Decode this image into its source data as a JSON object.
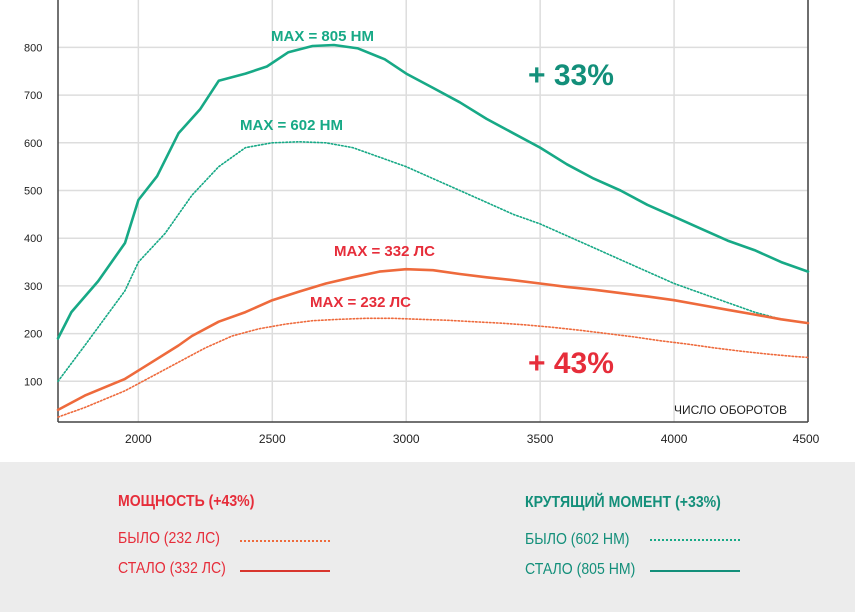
{
  "chart_data": {
    "type": "line",
    "xlabel": "ЧИСЛО ОБОРОТОВ",
    "xlim": [
      1700,
      4500
    ],
    "ylim": [
      0,
      870
    ],
    "x_ticks": [
      "2000",
      "2500",
      "3000",
      "3500",
      "4000",
      "4500"
    ],
    "y_ticks": [
      "100",
      "200",
      "300",
      "400",
      "500",
      "600",
      "700",
      "800"
    ],
    "grid": true,
    "colors": {
      "torque": "#17a986",
      "power": "#ee6a3c",
      "red_text": "#e62d3a"
    },
    "series": [
      {
        "name": "КРУТЯЩИЙ МОМЕНТ — СТАЛО (805 НМ)",
        "style": "solid",
        "color": "#17a986",
        "points": [
          [
            1700,
            190
          ],
          [
            1750,
            245
          ],
          [
            1850,
            310
          ],
          [
            1950,
            390
          ],
          [
            2000,
            480
          ],
          [
            2070,
            530
          ],
          [
            2150,
            620
          ],
          [
            2230,
            670
          ],
          [
            2300,
            730
          ],
          [
            2400,
            745
          ],
          [
            2480,
            760
          ],
          [
            2560,
            790
          ],
          [
            2650,
            803
          ],
          [
            2730,
            805
          ],
          [
            2820,
            798
          ],
          [
            2920,
            775
          ],
          [
            3000,
            745
          ],
          [
            3100,
            715
          ],
          [
            3200,
            685
          ],
          [
            3300,
            650
          ],
          [
            3400,
            620
          ],
          [
            3500,
            590
          ],
          [
            3600,
            555
          ],
          [
            3700,
            525
          ],
          [
            3800,
            500
          ],
          [
            3900,
            470
          ],
          [
            4000,
            445
          ],
          [
            4100,
            420
          ],
          [
            4200,
            395
          ],
          [
            4300,
            375
          ],
          [
            4400,
            350
          ],
          [
            4500,
            330
          ]
        ]
      },
      {
        "name": "КРУТЯЩИЙ МОМЕНТ — БЫЛО (602 НМ)",
        "style": "dotted",
        "color": "#17a986",
        "points": [
          [
            1700,
            100
          ],
          [
            1800,
            175
          ],
          [
            1950,
            290
          ],
          [
            2000,
            350
          ],
          [
            2100,
            410
          ],
          [
            2200,
            490
          ],
          [
            2300,
            550
          ],
          [
            2400,
            590
          ],
          [
            2500,
            600
          ],
          [
            2600,
            602
          ],
          [
            2700,
            600
          ],
          [
            2800,
            590
          ],
          [
            2900,
            570
          ],
          [
            3000,
            550
          ],
          [
            3100,
            525
          ],
          [
            3200,
            500
          ],
          [
            3300,
            475
          ],
          [
            3400,
            450
          ],
          [
            3500,
            430
          ],
          [
            3600,
            405
          ],
          [
            3700,
            380
          ],
          [
            3800,
            355
          ],
          [
            3900,
            330
          ],
          [
            4000,
            305
          ],
          [
            4100,
            285
          ],
          [
            4200,
            265
          ],
          [
            4300,
            245
          ],
          [
            4400,
            230
          ],
          [
            4500,
            222
          ]
        ]
      },
      {
        "name": "МОЩНОСТЬ — СТАЛО (332 ЛС)",
        "style": "solid",
        "color": "#ee6a3c",
        "points": [
          [
            1700,
            40
          ],
          [
            1800,
            70
          ],
          [
            1950,
            105
          ],
          [
            2050,
            140
          ],
          [
            2150,
            175
          ],
          [
            2200,
            195
          ],
          [
            2300,
            225
          ],
          [
            2400,
            245
          ],
          [
            2500,
            270
          ],
          [
            2600,
            288
          ],
          [
            2700,
            305
          ],
          [
            2800,
            318
          ],
          [
            2900,
            330
          ],
          [
            3000,
            335
          ],
          [
            3100,
            333
          ],
          [
            3200,
            325
          ],
          [
            3300,
            318
          ],
          [
            3400,
            312
          ],
          [
            3500,
            305
          ],
          [
            3600,
            298
          ],
          [
            3700,
            292
          ],
          [
            3800,
            285
          ],
          [
            3900,
            278
          ],
          [
            4000,
            270
          ],
          [
            4100,
            260
          ],
          [
            4200,
            250
          ],
          [
            4300,
            240
          ],
          [
            4400,
            230
          ],
          [
            4500,
            222
          ]
        ]
      },
      {
        "name": "МОЩНОСТЬ — БЫЛО (232 ЛС)",
        "style": "dotted",
        "color": "#ee6a3c",
        "points": [
          [
            1700,
            25
          ],
          [
            1800,
            45
          ],
          [
            1950,
            80
          ],
          [
            2050,
            110
          ],
          [
            2150,
            140
          ],
          [
            2250,
            170
          ],
          [
            2350,
            195
          ],
          [
            2450,
            210
          ],
          [
            2550,
            220
          ],
          [
            2650,
            227
          ],
          [
            2750,
            230
          ],
          [
            2850,
            232
          ],
          [
            2950,
            232
          ],
          [
            3050,
            230
          ],
          [
            3150,
            228
          ],
          [
            3250,
            225
          ],
          [
            3350,
            222
          ],
          [
            3450,
            218
          ],
          [
            3550,
            213
          ],
          [
            3650,
            207
          ],
          [
            3750,
            200
          ],
          [
            3850,
            193
          ],
          [
            3950,
            185
          ],
          [
            4050,
            178
          ],
          [
            4150,
            170
          ],
          [
            4250,
            163
          ],
          [
            4350,
            157
          ],
          [
            4450,
            152
          ],
          [
            4500,
            150
          ]
        ]
      }
    ],
    "annotations": {
      "torque_new_max": "MAX = 805 НМ",
      "torque_old_max": "MAX = 602 НМ",
      "power_new_max": "MAX = 332 ЛС",
      "power_old_max": "MAX = 232 ЛС",
      "torque_gain": "+ 33%",
      "power_gain": "+ 43%"
    }
  },
  "legend": {
    "power": {
      "title": "МОЩНОСТЬ (+43%)",
      "before": "БЫЛО (232 ЛС)",
      "after": "СТАЛО (332 ЛС)"
    },
    "torque": {
      "title": "КРУТЯЩИЙ МОМЕНТ (+33%)",
      "before": "БЫЛО (602 НМ)",
      "after": "СТАЛО (805 НМ)"
    }
  }
}
